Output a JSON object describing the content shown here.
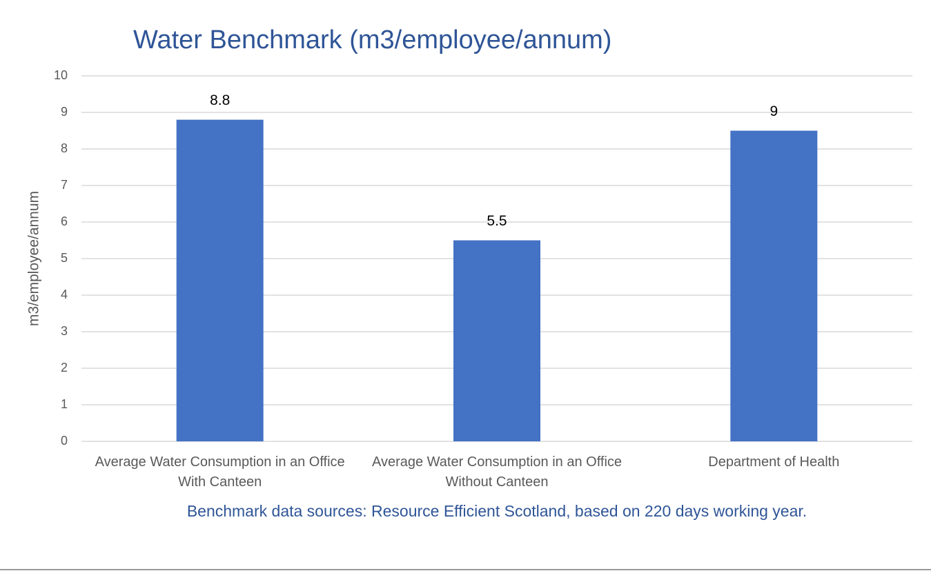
{
  "chart_data": {
    "type": "bar",
    "title": "Water Benchmark (m3/employee/annum)",
    "ylabel": "m3/employee/annum",
    "note": "Benchmark data sources: Resource Efficient Scotland, based on 220 days working year.",
    "categories": [
      "Average Water Consumption in an Office With Canteen",
      "Average Water Consumption in an Office Without Canteen",
      "Department of Health"
    ],
    "values": [
      8.8,
      5.5,
      8.5
    ],
    "value_labels": [
      "8.8",
      "5.5",
      "9"
    ],
    "color": "#4472c4",
    "ylim": [
      0,
      10
    ],
    "yticks": [
      0,
      1,
      2,
      3,
      4,
      5,
      6,
      7,
      8,
      9,
      10
    ],
    "grid": true
  }
}
